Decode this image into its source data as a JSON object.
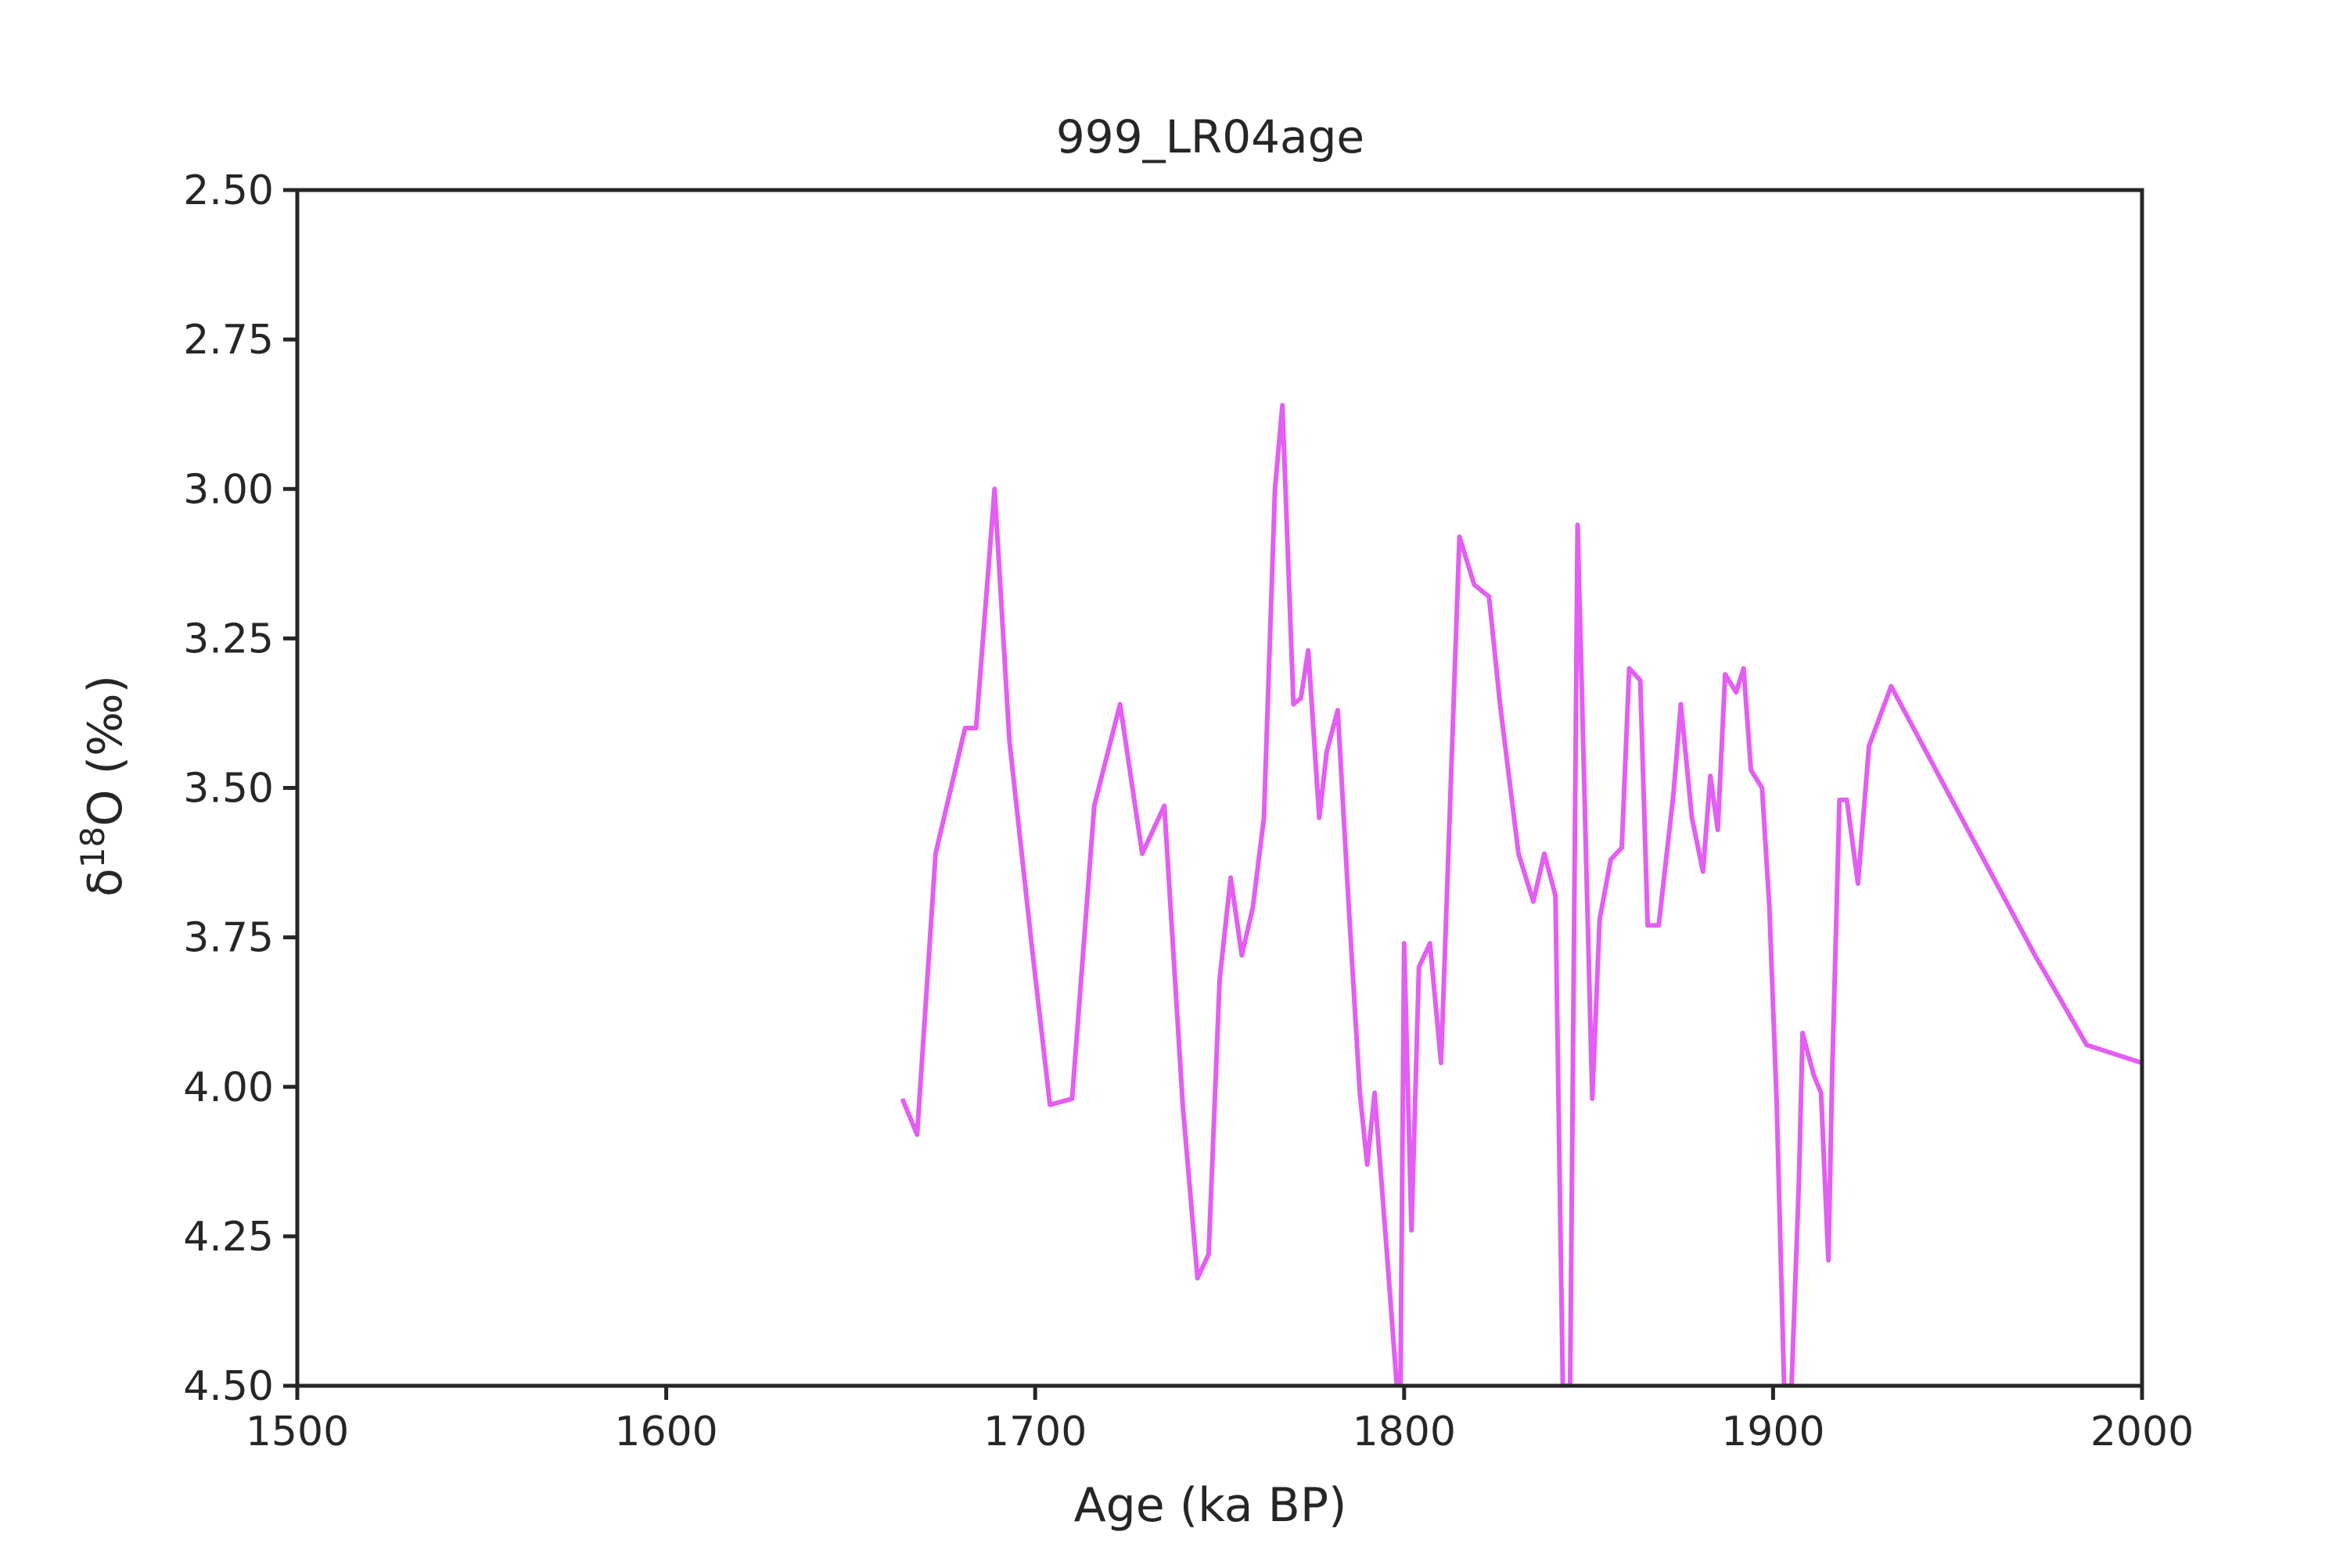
{
  "chart_data": {
    "type": "line",
    "title": "999_LR04age",
    "xlabel": "Age (ka BP)",
    "ylabel_parts": {
      "base": "δ",
      "sup": "18",
      "rest": "O (‰)"
    },
    "xlim": [
      1500,
      2000
    ],
    "ylim": [
      2.5,
      4.5
    ],
    "y_inverted": true,
    "x_ticks": [
      "1500",
      "1600",
      "1700",
      "1800",
      "1900",
      "2000"
    ],
    "y_ticks": [
      "2.50",
      "2.75",
      "3.00",
      "3.25",
      "3.50",
      "3.75",
      "4.00",
      "4.25",
      "4.50"
    ],
    "grid": false,
    "line_color": "#e35ef2",
    "series": [
      {
        "x": [
          1664,
          1668,
          1673,
          1681,
          1684,
          1689,
          1693,
          1699,
          1704,
          1710,
          1716,
          1723,
          1729,
          1735,
          1740,
          1744,
          1747,
          1750,
          1753,
          1756,
          1759,
          1762,
          1765,
          1767,
          1770,
          1772,
          1774,
          1777,
          1779,
          1782,
          1785,
          1788,
          1790,
          1792,
          1795,
          1798,
          1799,
          1800,
          1802,
          1804,
          1807,
          1810,
          1815,
          1819,
          1823,
          1826,
          1831,
          1835,
          1838,
          1841,
          1843,
          1845,
          1847,
          1851,
          1853,
          1856,
          1859,
          1861,
          1864,
          1866,
          1869,
          1873,
          1875,
          1878,
          1881,
          1883,
          1885,
          1887,
          1890,
          1892,
          1894,
          1897,
          1899,
          1901,
          1903,
          1905,
          1907,
          1908,
          1911,
          1913,
          1915,
          1916,
          1918,
          1920,
          1923,
          1926,
          1932,
          1945,
          1958,
          1971,
          1985,
          2000
        ],
        "y": [
          4.02,
          4.08,
          3.61,
          3.4,
          3.4,
          3.0,
          3.42,
          3.76,
          4.03,
          4.02,
          3.53,
          3.36,
          3.61,
          3.53,
          4.03,
          4.32,
          4.28,
          3.82,
          3.65,
          3.78,
          3.7,
          3.55,
          3.0,
          2.86,
          3.36,
          3.35,
          3.27,
          3.55,
          3.44,
          3.37,
          3.7,
          4.01,
          4.13,
          4.01,
          4.25,
          4.5,
          4.5,
          3.76,
          4.24,
          3.8,
          3.76,
          3.96,
          3.08,
          3.16,
          3.18,
          3.36,
          3.61,
          3.69,
          3.61,
          3.68,
          4.5,
          4.5,
          3.06,
          4.02,
          3.72,
          3.62,
          3.6,
          3.3,
          3.32,
          3.73,
          3.73,
          3.51,
          3.36,
          3.55,
          3.64,
          3.48,
          3.57,
          3.31,
          3.34,
          3.3,
          3.47,
          3.5,
          3.7,
          4.03,
          4.5,
          4.5,
          4.16,
          3.91,
          3.98,
          4.01,
          4.29,
          3.98,
          3.52,
          3.52,
          3.66,
          3.43,
          3.33,
          3.48,
          3.63,
          3.78,
          3.93,
          3.96
        ]
      }
    ]
  }
}
